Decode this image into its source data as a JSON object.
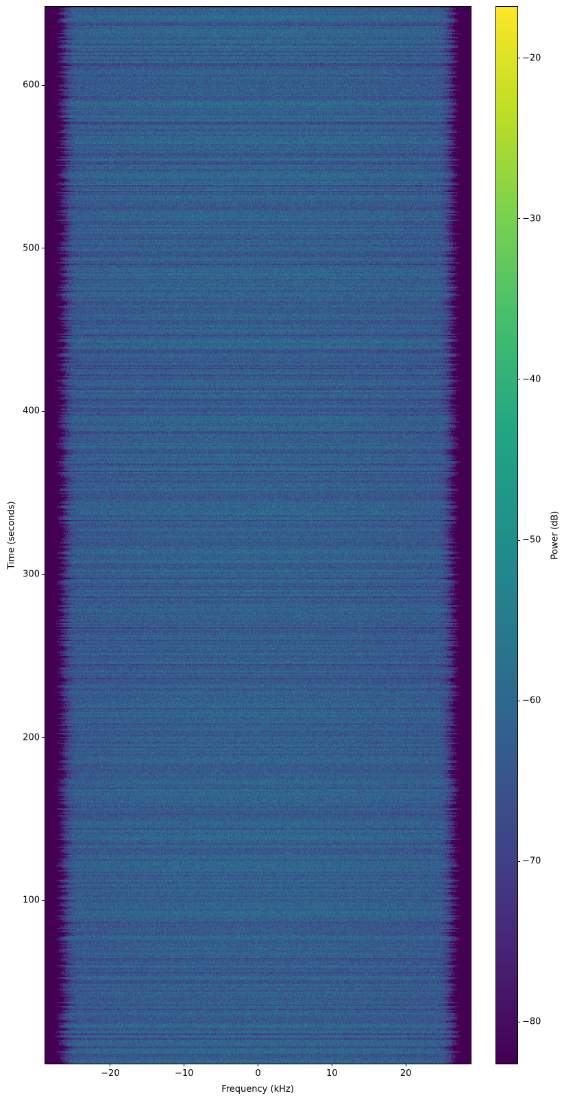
{
  "chart_data": {
    "type": "heatmap",
    "title": "",
    "xlabel": "Frequency (kHz)",
    "ylabel": "Time (seconds)",
    "xlim": [
      -28.8,
      28.8
    ],
    "ylim": [
      0,
      648
    ],
    "xticks": [
      -20,
      -10,
      0,
      10,
      20
    ],
    "xtick_labels": [
      "−20",
      "−10",
      "0",
      "10",
      "20"
    ],
    "yticks": [
      100,
      200,
      300,
      400,
      500,
      600
    ],
    "ytick_labels": [
      "100",
      "200",
      "300",
      "400",
      "500",
      "600"
    ],
    "colormap": "viridis",
    "colorbar": {
      "label": "Power (dB)",
      "range": [
        -82.6,
        -16.8
      ],
      "ticks": [
        -20,
        -30,
        -40,
        -50,
        -60,
        -70,
        -80
      ],
      "tick_labels": [
        "−20",
        "−30",
        "−40",
        "−50",
        "−60",
        "−70",
        "−80"
      ]
    },
    "description_values": {
      "passband_power_db": [
        -65,
        -55
      ],
      "band_edge_khz": [
        -27,
        27
      ],
      "out_of_band_power_db": -82.6
    },
    "grid": false
  }
}
